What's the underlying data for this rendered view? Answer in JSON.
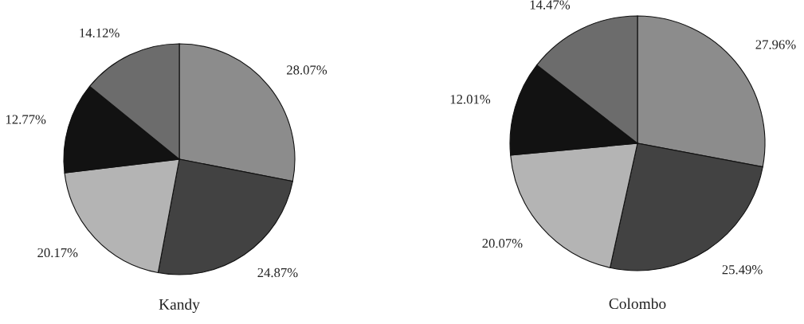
{
  "chart_data": [
    {
      "type": "pie",
      "title": "Kandy",
      "categories": [
        null,
        null,
        null,
        null,
        null
      ],
      "values": [
        28.07,
        24.87,
        20.17,
        12.77,
        14.12
      ],
      "value_labels": [
        "28.07%",
        "24.87%",
        "20.17%",
        "12.77%",
        "14.12%"
      ],
      "colors": [
        "#8c8c8c",
        "#424242",
        "#b4b4b4",
        "#121212",
        "#6c6c6c"
      ]
    },
    {
      "type": "pie",
      "title": "Colombo",
      "categories": [
        null,
        null,
        null,
        null,
        null
      ],
      "values": [
        27.96,
        25.49,
        20.07,
        12.01,
        14.47
      ],
      "value_labels": [
        "27.96%",
        "25.49%",
        "20.07%",
        "12.01%",
        "14.47%"
      ],
      "colors": [
        "#8c8c8c",
        "#424242",
        "#b4b4b4",
        "#121212",
        "#6c6c6c"
      ]
    }
  ]
}
